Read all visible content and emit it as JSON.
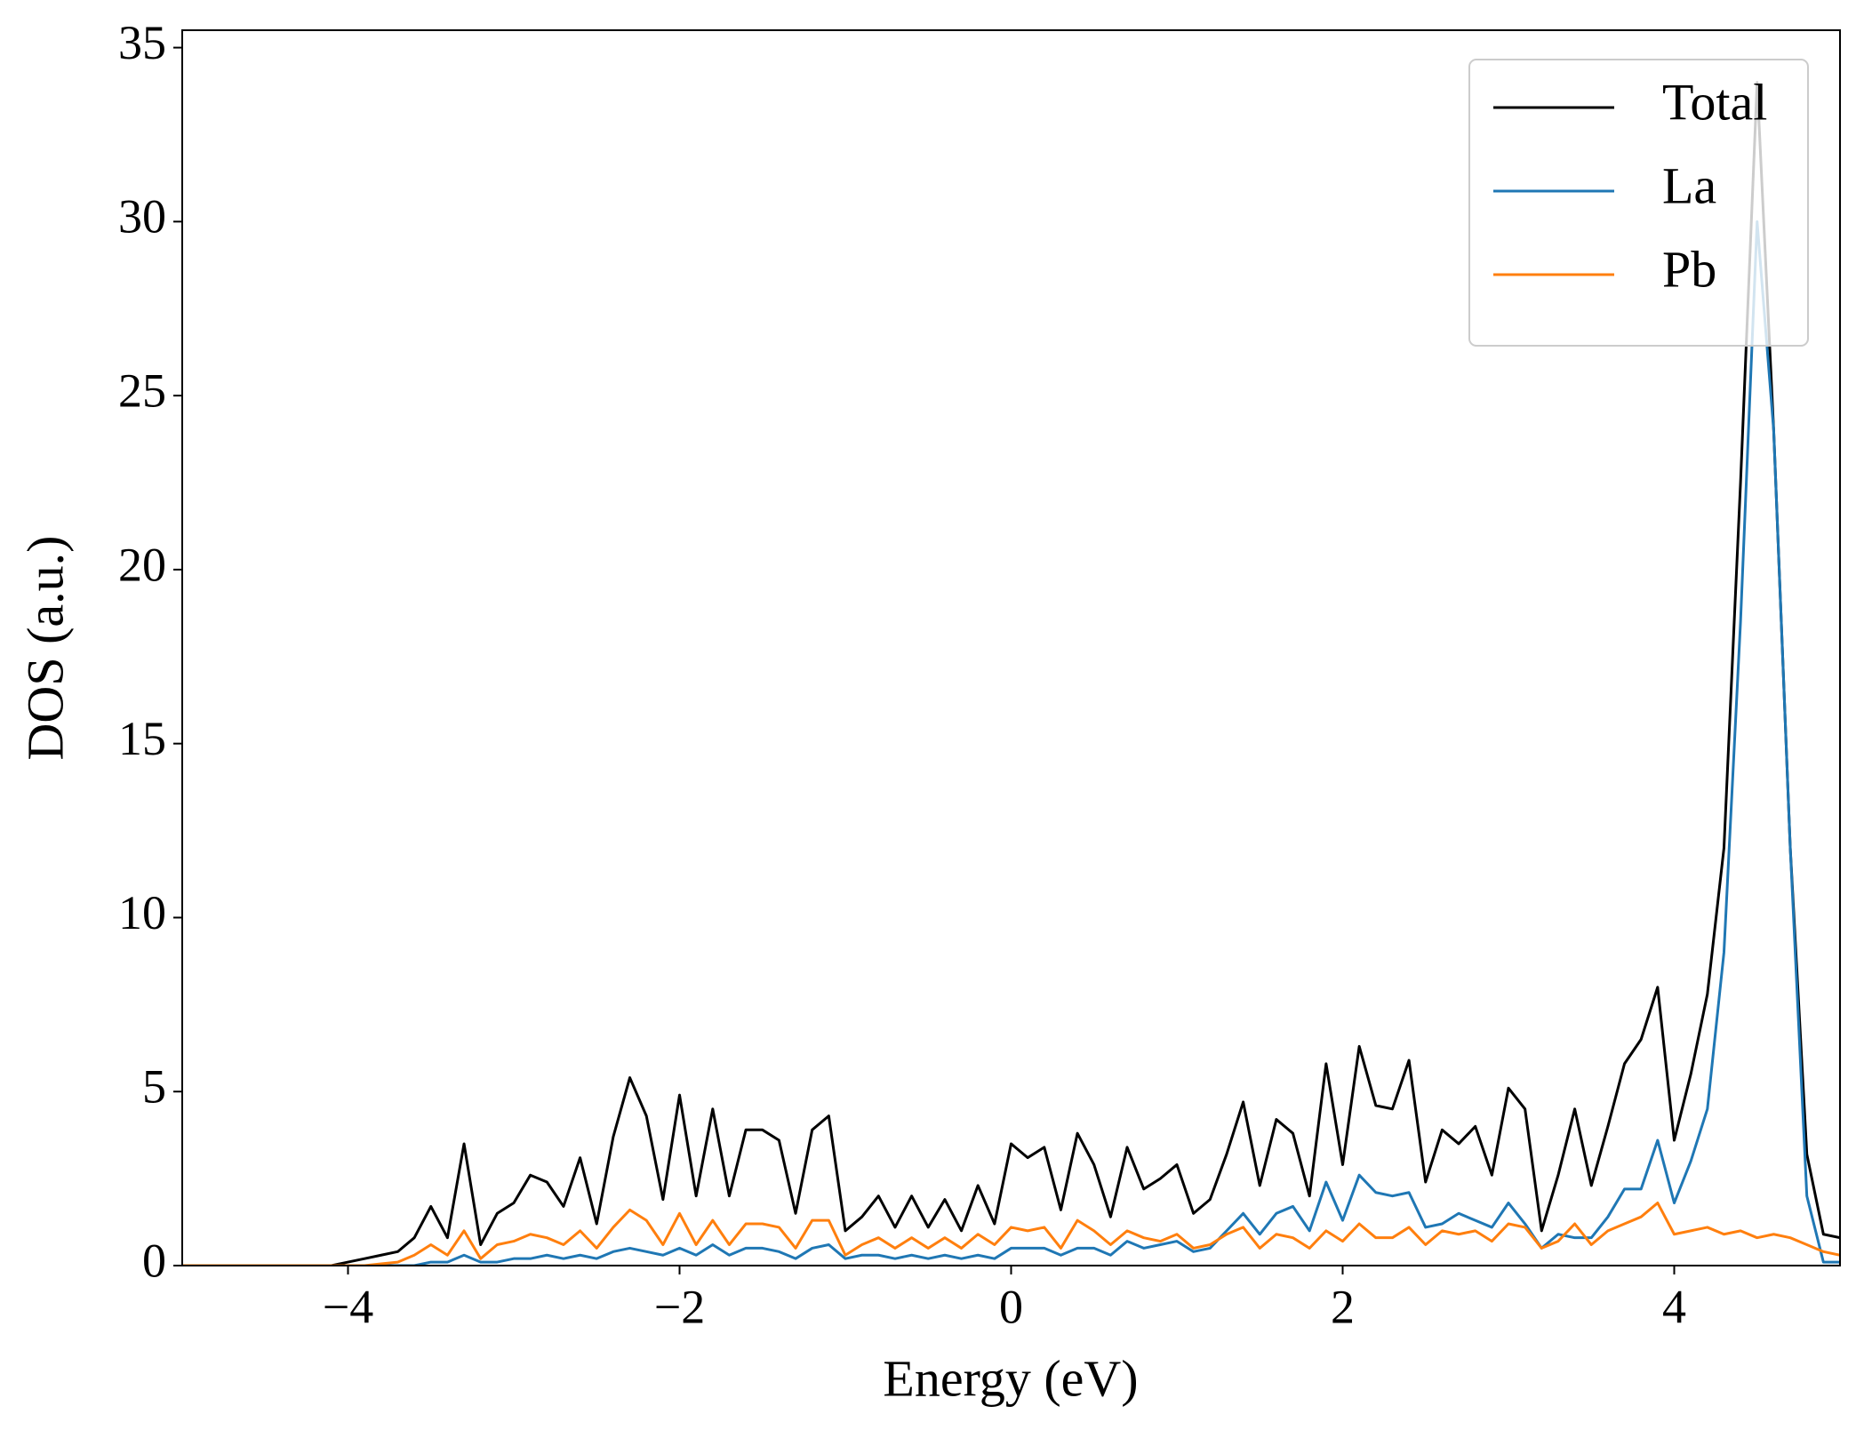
{
  "chart_data": {
    "type": "line",
    "xlabel": "Energy (eV)",
    "ylabel": "DOS (a.u.)",
    "x": [
      -5,
      -4.9,
      -4.8,
      -4.7,
      -4.6,
      -4.5,
      -4.4,
      -4.3,
      -4.2,
      -4.1,
      -4,
      -3.9,
      -3.8,
      -3.7,
      -3.6,
      -3.5,
      -3.4,
      -3.3,
      -3.2,
      -3.1,
      -3,
      -2.9,
      -2.8,
      -2.7,
      -2.6,
      -2.5,
      -2.4,
      -2.3,
      -2.2,
      -2.1,
      -2,
      -1.9,
      -1.8,
      -1.7,
      -1.6,
      -1.5,
      -1.4,
      -1.3,
      -1.2,
      -1.1,
      -1,
      -0.9,
      -0.8,
      -0.7,
      -0.6,
      -0.5,
      -0.4,
      -0.3,
      -0.2,
      -0.1,
      0,
      0.1,
      0.2,
      0.3,
      0.4,
      0.5,
      0.6,
      0.7,
      0.8,
      0.9,
      1,
      1.1,
      1.2,
      1.3,
      1.4,
      1.5,
      1.6,
      1.7,
      1.8,
      1.9,
      2,
      2.1,
      2.2,
      2.3,
      2.4,
      2.5,
      2.6,
      2.7,
      2.8,
      2.9,
      3,
      3.1,
      3.2,
      3.3,
      3.4,
      3.5,
      3.6,
      3.7,
      3.8,
      3.9,
      4,
      4.1,
      4.2,
      4.3,
      4.4,
      4.5,
      4.6,
      4.7,
      4.8,
      4.9,
      5
    ],
    "series": [
      {
        "name": "Total",
        "color": "#000000",
        "values": [
          0,
          0,
          0,
          0,
          0,
          0,
          0,
          0,
          0,
          0,
          0.1,
          0.2,
          0.3,
          0.4,
          0.8,
          1.7,
          0.8,
          3.5,
          0.6,
          1.5,
          1.8,
          2.6,
          2.4,
          1.7,
          3.1,
          1.2,
          3.7,
          5.4,
          4.3,
          1.9,
          4.9,
          2.0,
          4.5,
          2.0,
          3.9,
          3.9,
          3.6,
          1.5,
          3.9,
          4.3,
          1.0,
          1.4,
          2.0,
          1.1,
          2.0,
          1.1,
          1.9,
          1.0,
          2.3,
          1.2,
          3.5,
          3.1,
          3.4,
          1.6,
          3.8,
          2.9,
          1.4,
          3.4,
          2.2,
          2.5,
          2.9,
          1.5,
          1.9,
          3.2,
          4.7,
          2.3,
          4.2,
          3.8,
          2.0,
          5.8,
          2.9,
          6.3,
          4.6,
          4.5,
          5.9,
          2.4,
          3.9,
          3.5,
          4.0,
          2.6,
          5.1,
          4.5,
          1.0,
          2.6,
          4.5,
          2.3,
          4.0,
          5.8,
          6.5,
          8.0,
          3.6,
          5.5,
          7.8,
          12,
          22.5,
          34,
          24,
          12,
          3.2,
          0.9,
          0.8
        ]
      },
      {
        "name": "La",
        "color": "#1f77b4",
        "values": [
          0,
          0,
          0,
          0,
          0,
          0,
          0,
          0,
          0,
          0,
          0,
          0,
          0,
          0,
          0,
          0.1,
          0.1,
          0.3,
          0.1,
          0.1,
          0.2,
          0.2,
          0.3,
          0.2,
          0.3,
          0.2,
          0.4,
          0.5,
          0.4,
          0.3,
          0.5,
          0.3,
          0.6,
          0.3,
          0.5,
          0.5,
          0.4,
          0.2,
          0.5,
          0.6,
          0.2,
          0.3,
          0.3,
          0.2,
          0.3,
          0.2,
          0.3,
          0.2,
          0.3,
          0.2,
          0.5,
          0.5,
          0.5,
          0.3,
          0.5,
          0.5,
          0.3,
          0.7,
          0.5,
          0.6,
          0.7,
          0.4,
          0.5,
          1.0,
          1.5,
          0.9,
          1.5,
          1.7,
          1.0,
          2.4,
          1.3,
          2.6,
          2.1,
          2.0,
          2.1,
          1.1,
          1.2,
          1.5,
          1.3,
          1.1,
          1.8,
          1.2,
          0.5,
          0.9,
          0.8,
          0.8,
          1.4,
          2.2,
          2.2,
          3.6,
          1.8,
          3.0,
          4.5,
          9,
          18.5,
          30,
          24,
          12,
          2.0,
          0.1,
          0.1
        ]
      },
      {
        "name": "Pb",
        "color": "#ff7f0e",
        "values": [
          0,
          0,
          0,
          0,
          0,
          0,
          0,
          0,
          0,
          0,
          0,
          0,
          0.05,
          0.1,
          0.3,
          0.6,
          0.3,
          1.0,
          0.2,
          0.6,
          0.7,
          0.9,
          0.8,
          0.6,
          1.0,
          0.5,
          1.1,
          1.6,
          1.3,
          0.6,
          1.5,
          0.6,
          1.3,
          0.6,
          1.2,
          1.2,
          1.1,
          0.5,
          1.3,
          1.3,
          0.3,
          0.6,
          0.8,
          0.5,
          0.8,
          0.5,
          0.8,
          0.5,
          0.9,
          0.6,
          1.1,
          1.0,
          1.1,
          0.5,
          1.3,
          1.0,
          0.6,
          1.0,
          0.8,
          0.7,
          0.9,
          0.5,
          0.6,
          0.9,
          1.1,
          0.5,
          0.9,
          0.8,
          0.5,
          1.0,
          0.7,
          1.2,
          0.8,
          0.8,
          1.1,
          0.6,
          1.0,
          0.9,
          1.0,
          0.7,
          1.2,
          1.1,
          0.5,
          0.7,
          1.2,
          0.6,
          1.0,
          1.2,
          1.4,
          1.8,
          0.9,
          1.0,
          1.1,
          0.9,
          1.0,
          0.8,
          0.9,
          0.8,
          0.6,
          0.4,
          0.3
        ]
      }
    ],
    "xlim": [
      -5,
      5
    ],
    "ylim": [
      0,
      35.5
    ],
    "xticks": [
      {
        "value": -4,
        "label": "−4"
      },
      {
        "value": -2,
        "label": "−2"
      },
      0,
      2,
      4
    ],
    "yticks": [
      0,
      5,
      10,
      15,
      20,
      25,
      30,
      35
    ],
    "grid": false,
    "legend": "upper right"
  }
}
